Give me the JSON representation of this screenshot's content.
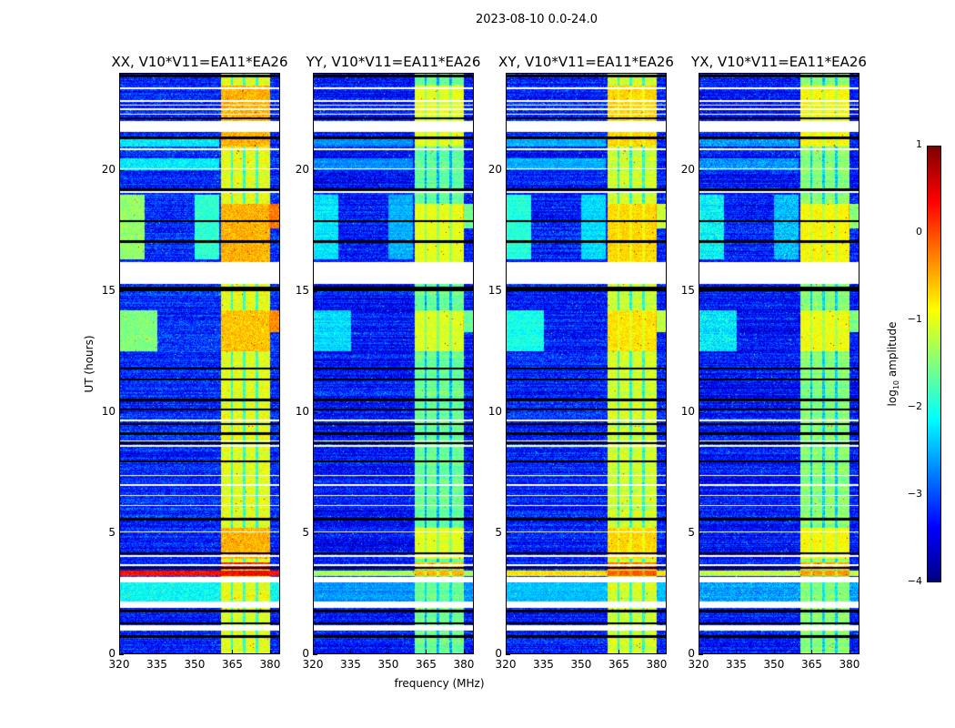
{
  "chart_data": {
    "type": "heatmap",
    "title": "2023-08-10 0.0-24.0",
    "xlabel": "frequency (MHz)",
    "ylabel": "UT (hours)",
    "xlim": [
      320,
      384
    ],
    "ylim": [
      0,
      24
    ],
    "xticks": [
      "320",
      "335",
      "350",
      "365",
      "380"
    ],
    "xtick_values": [
      320,
      335,
      350,
      365,
      380
    ],
    "yticks": [
      "0",
      "5",
      "10",
      "15",
      "20"
    ],
    "ytick_values": [
      0,
      5,
      10,
      15,
      20
    ],
    "panels": [
      {
        "title": "XX, V10*V11=EA11*EA26",
        "bg_level": -3.2,
        "band_level": -1.0,
        "feature_scale": 1.0
      },
      {
        "title": "YY, V10*V11=EA11*EA26",
        "bg_level": -3.3,
        "band_level": -1.6,
        "feature_scale": 0.55
      },
      {
        "title": "XY, V10*V11=EA11*EA26",
        "bg_level": -3.25,
        "band_level": -1.1,
        "feature_scale": 0.7
      },
      {
        "title": "YX, V10*V11=EA11*EA26",
        "bg_level": -3.3,
        "band_level": -1.45,
        "feature_scale": 0.6
      }
    ],
    "band_mhz": [
      360.5,
      380.5
    ],
    "band_gap_mhz": [
      365,
      370,
      375
    ],
    "flagged_hours": [
      [
        0.95,
        1.15
      ],
      [
        1.9,
        2.15
      ],
      [
        2.95,
        3.15
      ],
      [
        3.6,
        3.68
      ],
      [
        4.0,
        4.06
      ],
      [
        5.0,
        5.06
      ],
      [
        6.1,
        6.16
      ],
      [
        6.5,
        6.56
      ],
      [
        6.95,
        7.0
      ],
      [
        7.35,
        7.4
      ],
      [
        8.55,
        8.62
      ],
      [
        8.78,
        8.83
      ],
      [
        9.62,
        9.7
      ],
      [
        15.3,
        16.2
      ],
      [
        19.05,
        19.15
      ],
      [
        20.05,
        20.1
      ],
      [
        20.85,
        20.9
      ],
      [
        21.6,
        22.05
      ],
      [
        22.3,
        22.35
      ],
      [
        22.5,
        22.55
      ],
      [
        22.68,
        22.73
      ],
      [
        22.85,
        22.9
      ],
      [
        23.35,
        23.45
      ]
    ],
    "black_hours": [
      0.7,
      1.25,
      1.75,
      3.55,
      4.15,
      5.55,
      7.95,
      8.7,
      9.1,
      9.5,
      10.1,
      10.5,
      11.35,
      11.8,
      15.05,
      15.12,
      17.05,
      17.9,
      19.2,
      21.35,
      22.15,
      23.9
    ],
    "features": [
      {
        "hours": [
          3.2,
          3.42
        ],
        "mhz": [
          320,
          384
        ],
        "level": 0.35
      },
      {
        "hours": [
          3.45,
          3.75
        ],
        "mhz": [
          360.5,
          380.5
        ],
        "level": 0.2
      },
      {
        "hours": [
          2.15,
          2.95
        ],
        "mhz": [
          320,
          384
        ],
        "level": -2.1
      },
      {
        "hours": [
          3.9,
          5.2
        ],
        "mhz": [
          360.5,
          380.5
        ],
        "level": -0.5
      },
      {
        "hours": [
          12.5,
          14.2
        ],
        "mhz": [
          320,
          335
        ],
        "level": -1.5
      },
      {
        "hours": [
          12.5,
          14.2
        ],
        "mhz": [
          360.5,
          380.5
        ],
        "level": -0.6
      },
      {
        "hours": [
          13.3,
          14.2
        ],
        "mhz": [
          380,
          384
        ],
        "level": -0.3
      },
      {
        "hours": [
          16.3,
          19.0
        ],
        "mhz": [
          320,
          330
        ],
        "level": -1.4
      },
      {
        "hours": [
          16.3,
          19.0
        ],
        "mhz": [
          350,
          360
        ],
        "level": -1.9
      },
      {
        "hours": [
          16.2,
          18.6
        ],
        "mhz": [
          360.5,
          380.5
        ],
        "level": -0.5
      },
      {
        "hours": [
          17.6,
          18.6
        ],
        "mhz": [
          380,
          384
        ],
        "level": -0.2
      },
      {
        "hours": [
          20.0,
          20.5
        ],
        "mhz": [
          320,
          360
        ],
        "level": -2.2
      },
      {
        "hours": [
          21.0,
          21.35
        ],
        "mhz": [
          320,
          360
        ],
        "level": -2.2
      },
      {
        "hours": [
          21.0,
          23.5
        ],
        "mhz": [
          360.5,
          380.5
        ],
        "level": -0.5
      }
    ],
    "colorbar": {
      "label_main": "log",
      "label_sub": "10",
      "label_rest": " amplitude",
      "range": [
        -4,
        1
      ],
      "ticks": [
        "1",
        "0",
        "−1",
        "−2",
        "−3",
        "−4"
      ],
      "tick_values": [
        1,
        0,
        -1,
        -2,
        -3,
        -4
      ],
      "cmap": "jet"
    }
  }
}
